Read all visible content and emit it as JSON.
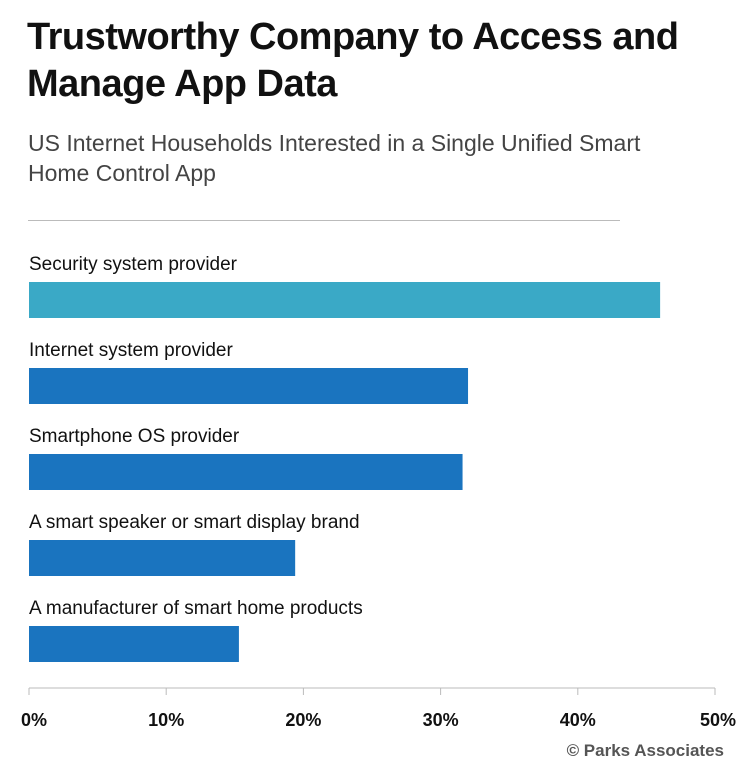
{
  "chart_data": {
    "type": "bar",
    "orientation": "horizontal",
    "title": "Trustworthy Company to Access and Manage App Data",
    "subtitle": "US Internet Households Interested in a Single Unified Smart Home Control App",
    "categories": [
      "Security system provider",
      "Internet system provider",
      "Smartphone OS provider",
      "A smart speaker or smart display brand",
      "A manufacturer of smart home products"
    ],
    "values": [
      46,
      32,
      31.6,
      19.4,
      15.3
    ],
    "colors": [
      "#3aa9c6",
      "#1a74bf",
      "#1a74bf",
      "#1a74bf",
      "#1a74bf"
    ],
    "xlim": [
      0,
      50
    ],
    "xticks": [
      "0%",
      "10%",
      "20%",
      "30%",
      "40%",
      "50%"
    ],
    "xlabel": "",
    "ylabel": "",
    "grid": false,
    "legend": "none"
  },
  "credit": "© Parks Associates"
}
